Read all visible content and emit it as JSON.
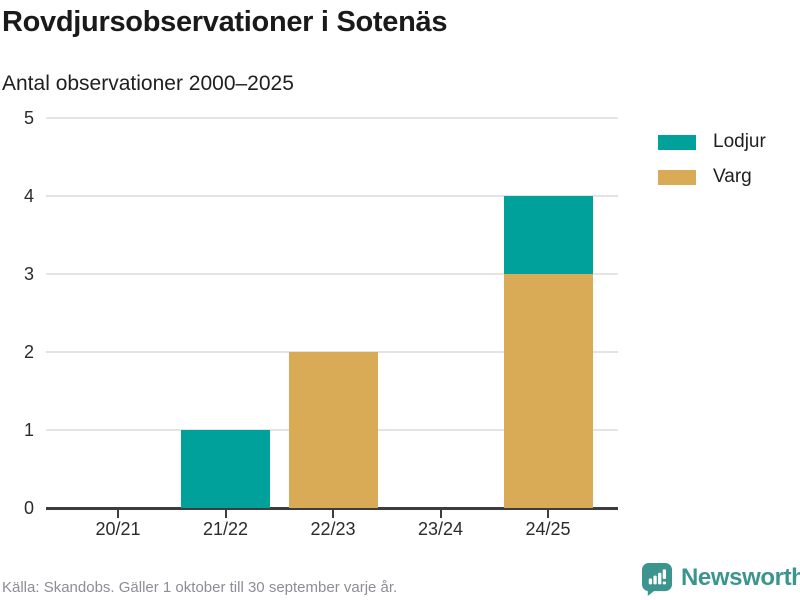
{
  "title": "Rovdjursobservationer i Sotenäs",
  "subtitle": "Antal observationer 2000–2025",
  "legend": [
    {
      "label": "Lodjur",
      "color": "#00a19a"
    },
    {
      "label": "Varg",
      "color": "#d9ab57"
    }
  ],
  "footer": {
    "source": "Källa: Skandobs. Gäller 1 oktober till 30 september varje år.",
    "brand": "Newsworthy",
    "brand_color": "#3b958e"
  },
  "chart_data": {
    "type": "bar",
    "stacked": true,
    "title": "Rovdjursobservationer i Sotenäs",
    "subtitle": "Antal observationer 2000–2025",
    "categories": [
      "20/21",
      "21/22",
      "22/23",
      "23/24",
      "24/25"
    ],
    "series": [
      {
        "name": "Varg",
        "color": "#d9ab57",
        "values": [
          0,
          0,
          2,
          0,
          3
        ]
      },
      {
        "name": "Lodjur",
        "color": "#00a19a",
        "values": [
          0,
          1,
          0,
          0,
          1
        ]
      }
    ],
    "totals": [
      0,
      1,
      2,
      0,
      4
    ],
    "ylabel": "Antal observationer",
    "ylim": [
      0,
      5
    ],
    "yticks": [
      0,
      1,
      2,
      3,
      4,
      5
    ],
    "grid": true,
    "legend_position": "top-right"
  }
}
